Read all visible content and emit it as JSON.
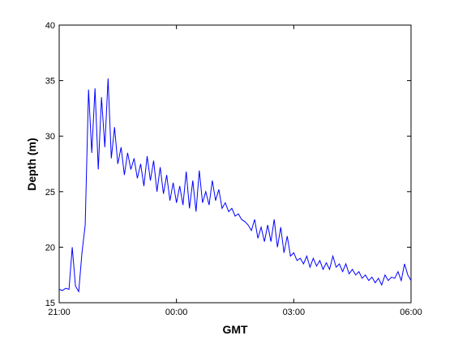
{
  "chart_data": {
    "type": "line",
    "title": "",
    "xlabel": "GMT",
    "ylabel": "Depth (m)",
    "xlim": [
      "21:00",
      "06:00"
    ],
    "ylim": [
      15,
      40
    ],
    "x_ticks": [
      "21:00",
      "00:00",
      "03:00",
      "06:00"
    ],
    "y_ticks": [
      15,
      20,
      25,
      30,
      35,
      40
    ],
    "grid": false,
    "line_color": "#0000ff",
    "series": [
      {
        "x": [
          "21:00",
          "21:05",
          "21:10",
          "21:15",
          "21:20",
          "21:25",
          "21:30",
          "21:35",
          "21:40",
          "21:45",
          "21:50",
          "21:55",
          "22:00",
          "22:05",
          "22:10",
          "22:15",
          "22:20",
          "22:25",
          "22:30",
          "22:35",
          "22:40",
          "22:45",
          "22:50",
          "22:55",
          "23:00",
          "23:05",
          "23:10",
          "23:15",
          "23:20",
          "23:25",
          "23:30",
          "23:35",
          "23:40",
          "23:45",
          "23:50",
          "23:55",
          "00:00",
          "00:05",
          "00:10",
          "00:15",
          "00:20",
          "00:25",
          "00:30",
          "00:35",
          "00:40",
          "00:45",
          "00:50",
          "00:55",
          "01:00",
          "01:05",
          "01:10",
          "01:15",
          "01:20",
          "01:25",
          "01:30",
          "01:35",
          "01:40",
          "01:45",
          "01:50",
          "01:55",
          "02:00",
          "02:05",
          "02:10",
          "02:15",
          "02:20",
          "02:25",
          "02:30",
          "02:35",
          "02:40",
          "02:45",
          "02:50",
          "02:55",
          "03:00",
          "03:05",
          "03:10",
          "03:15",
          "03:20",
          "03:25",
          "03:30",
          "03:35",
          "03:40",
          "03:45",
          "03:50",
          "03:55",
          "04:00",
          "04:05",
          "04:10",
          "04:15",
          "04:20",
          "04:25",
          "04:30",
          "04:35",
          "04:40",
          "04:45",
          "04:50",
          "04:55",
          "05:00",
          "05:05",
          "05:10",
          "05:15",
          "05:20",
          "05:25",
          "05:30",
          "05:35",
          "05:40",
          "05:45",
          "05:50",
          "05:55",
          "06:00"
        ],
        "y": [
          16.2,
          16.1,
          16.3,
          16.2,
          20.0,
          16.5,
          16.0,
          19.5,
          22.0,
          34.2,
          28.5,
          34.3,
          27.0,
          33.5,
          29.0,
          35.2,
          28.0,
          30.8,
          27.5,
          29.0,
          26.5,
          28.5,
          27.0,
          28.0,
          26.2,
          27.5,
          25.5,
          28.2,
          26.0,
          27.8,
          25.0,
          27.2,
          24.8,
          26.5,
          24.2,
          25.8,
          24.0,
          25.5,
          23.8,
          26.8,
          23.5,
          26.0,
          23.2,
          26.9,
          24.0,
          25.0,
          23.8,
          26.0,
          24.2,
          25.2,
          23.5,
          24.0,
          23.2,
          23.5,
          22.8,
          23.0,
          22.5,
          22.3,
          22.0,
          21.5,
          22.5,
          20.8,
          21.8,
          20.5,
          22.0,
          20.5,
          22.5,
          20.0,
          21.8,
          19.5,
          21.0,
          19.2,
          19.5,
          18.8,
          19.0,
          18.5,
          19.2,
          18.2,
          19.0,
          18.3,
          18.8,
          18.0,
          18.6,
          18.0,
          19.2,
          18.2,
          18.5,
          17.8,
          18.5,
          17.6,
          18.0,
          17.5,
          17.8,
          17.2,
          17.5,
          17.0,
          17.3,
          16.8,
          17.2,
          16.6,
          17.5,
          17.0,
          17.3,
          17.2,
          17.8,
          17.0,
          18.5,
          17.5,
          17.0
        ]
      }
    ]
  }
}
